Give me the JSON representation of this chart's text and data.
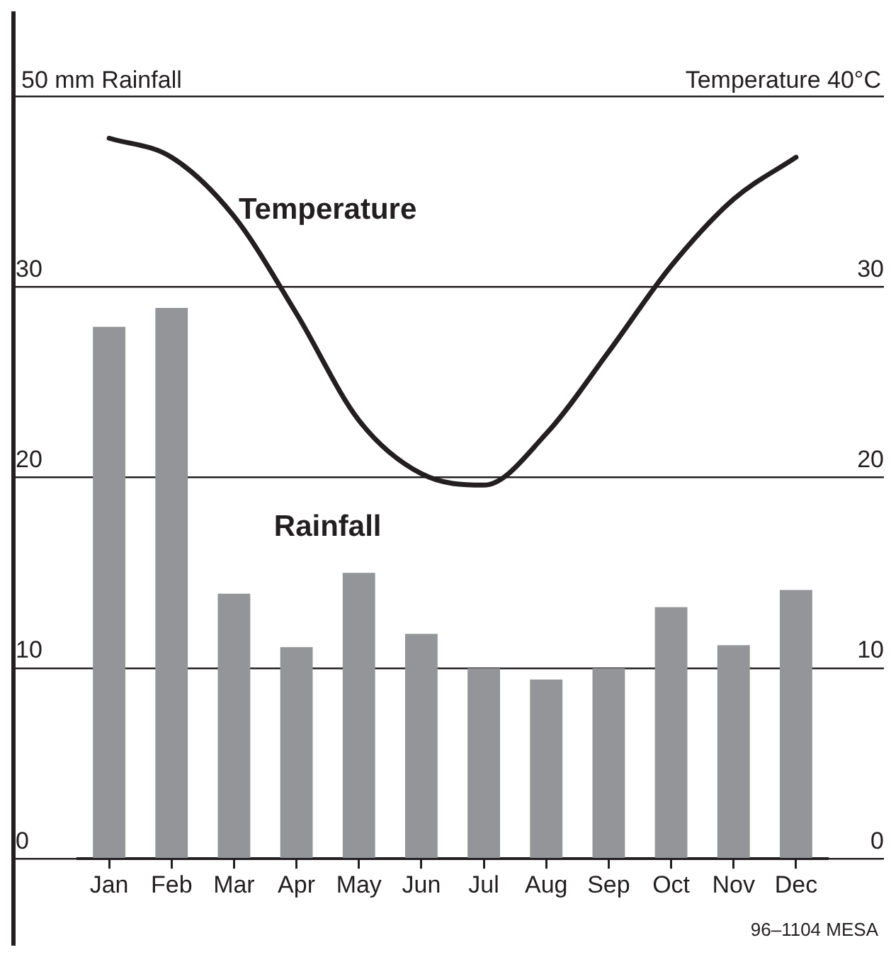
{
  "chart_data": {
    "type": "bar",
    "categories": [
      "Jan",
      "Feb",
      "Mar",
      "Apr",
      "May",
      "Jun",
      "Jul",
      "Aug",
      "Sep",
      "Oct",
      "Nov",
      "Dec"
    ],
    "series": [
      {
        "type": "bar",
        "name": "Rainfall",
        "color": "#939598",
        "values": [
          27.9,
          28.9,
          13.9,
          11.1,
          15.0,
          11.8,
          10.0,
          9.4,
          10.0,
          13.2,
          11.2,
          14.1
        ]
      },
      {
        "type": "line",
        "name": "Temperature",
        "axis": "y2",
        "color": "#231f20",
        "values": [
          37.8,
          36.8,
          33.7,
          28.6,
          23.0,
          20.2,
          19.6,
          22.3,
          26.6,
          31.1,
          34.6,
          36.8
        ]
      }
    ],
    "ylabel": "50 mm Rainfall",
    "y2label": "Temperature 40°C",
    "ylim": [
      0,
      40
    ],
    "yticks": [
      0,
      10,
      20,
      30,
      {
        "value": 40,
        "label": null
      }
    ],
    "y2lim": [
      0,
      40
    ],
    "y2ticks": [
      0,
      10,
      20,
      30,
      {
        "value": 40,
        "label": null
      }
    ],
    "grid": "y",
    "legend": false,
    "marker": "none",
    "line_style": "solid",
    "annotations": [
      "96–1104 MESA"
    ]
  }
}
